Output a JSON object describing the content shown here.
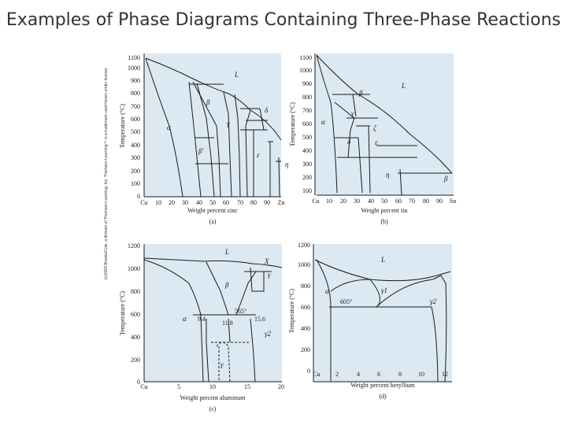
{
  "slide": {
    "title": "Examples of Phase Diagrams Containing Three-Phase Reactions",
    "copyright": "(c)2003 Brooks/Cole, a division of Thomson Learning, Inc. Thomson Learning™ is a trademark used herein under license."
  },
  "panels": {
    "a": {
      "caption": "(a)",
      "xlabel": "Weight percent zinc",
      "ylabel": "Temperature (°C)",
      "xticks": [
        "Cu",
        "10",
        "20",
        "30",
        "40",
        "50",
        "60",
        "70",
        "80",
        "90",
        "Zn"
      ],
      "yticks": [
        "0",
        "100",
        "200",
        "300",
        "400",
        "500",
        "600",
        "700",
        "800",
        "900",
        "1000",
        "1100"
      ],
      "phases": {
        "L": "L",
        "beta": "β",
        "alpha": "α",
        "gamma": "γ",
        "delta": "δ",
        "epsilon": "ε",
        "eta": "η",
        "betaprime": "β'"
      }
    },
    "b": {
      "caption": "(b)",
      "xlabel": "Weight percent tin",
      "ylabel": "Temperature (°C)",
      "xticks": [
        "Cu",
        "10",
        "20",
        "30",
        "40",
        "50",
        "60",
        "70",
        "80",
        "90",
        "Sn"
      ],
      "yticks": [
        "100",
        "200",
        "300",
        "400",
        "500",
        "600",
        "700",
        "800",
        "900",
        "1000",
        "1100"
      ],
      "phases": {
        "L": "L",
        "alpha": "α",
        "beta": "β",
        "gamma": "γ",
        "delta": "δ",
        "zeta": "ζ",
        "epsilon": "ε",
        "eta": "η",
        "beta2": "β"
      }
    },
    "c": {
      "caption": "(c)",
      "xlabel": "Weight percent aluminum",
      "ylabel": "Temperature (°C)",
      "xticks": [
        "Cu",
        "5",
        "10",
        "15",
        "20"
      ],
      "yticks": [
        "0",
        "200",
        "400",
        "600",
        "800",
        "1000",
        "1200"
      ],
      "phases": {
        "L": "L",
        "chi": "X",
        "gamma": "γ",
        "beta": "β",
        "alpha": "α",
        "gamma2": "γ2",
        "gammalow": "γ"
      },
      "annotations": {
        "t565": "565°",
        "c94": "9.4",
        "c118": "11.8",
        "c156": "15.6"
      }
    },
    "d": {
      "caption": "(d)",
      "xlabel": "Weight percent beryllium",
      "ylabel": "Temperature (°C)",
      "xticks": [
        "Cu",
        "2",
        "4",
        "6",
        "8",
        "10",
        "12"
      ],
      "yticks": [
        "0",
        "200",
        "400",
        "600",
        "800",
        "1000",
        "1200"
      ],
      "phases": {
        "L": "L",
        "alpha": "α",
        "gamma1": "γ1",
        "gamma2": "γ2"
      },
      "annotations": {
        "t605": "605°"
      }
    }
  },
  "colors": {
    "panel_bg": "#dce9f2",
    "line": "#1a1a1a",
    "text": "#333333"
  }
}
